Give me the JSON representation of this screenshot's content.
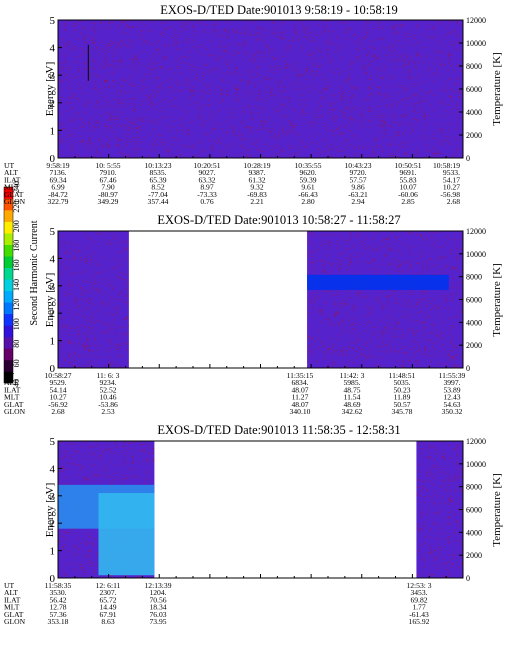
{
  "colors": {
    "background": "#5522cc",
    "noise": "#aa1133",
    "empty": "#ffffff"
  },
  "colorbar": {
    "label": "Second Harmonic Current",
    "ticks": [
      "40",
      "60",
      "80",
      "100",
      "120",
      "140",
      "160",
      "180",
      "200",
      "220",
      "240"
    ]
  },
  "chart_data": [
    {
      "type": "heatmap",
      "title": "EXOS-D/TED   Date:901013   9:58:19 - 10:58:19",
      "ylabel": "Energy [eV]",
      "ylabel_right": "Temperature [K]",
      "ylim": [
        0,
        5
      ],
      "y2lim": [
        0,
        12000
      ],
      "yticks": [
        "0",
        "1",
        "2",
        "3",
        "4",
        "5"
      ],
      "y2ticks": [
        "0",
        "2000",
        "4000",
        "6000",
        "8000",
        "10000",
        "12000"
      ],
      "data_coverage": [
        [
          0,
          1
        ]
      ],
      "features": [
        {
          "kind": "spike",
          "x": 0.075,
          "y0": 2.8,
          "y1": 4.1
        }
      ],
      "rows": {
        "labels": [
          "UT",
          "ALT",
          "ILAT",
          "MLT",
          "GLAT",
          "GLON"
        ],
        "columns": [
          {
            "UT": "9:58:19",
            "ALT": "7136.",
            "ILAT": "69.34",
            "MLT": "6.99",
            "GLAT": "-84.72",
            "GLON": "322.79"
          },
          {
            "UT": "10: 5:55",
            "ALT": "7910.",
            "ILAT": "67.46",
            "MLT": "7.90",
            "GLAT": "-80.97",
            "GLON": "349.29"
          },
          {
            "UT": "10:13:23",
            "ALT": "8535.",
            "ILAT": "65.39",
            "MLT": "8.52",
            "GLAT": "-77.04",
            "GLON": "357.44"
          },
          {
            "UT": "10:20:51",
            "ALT": "9027.",
            "ILAT": "63.32",
            "MLT": "8.97",
            "GLAT": "-73.33",
            "GLON": "0.76"
          },
          {
            "UT": "10:28:19",
            "ALT": "9387.",
            "ILAT": "61.32",
            "MLT": "9.32",
            "GLAT": "-69.83",
            "GLON": "2.21"
          },
          {
            "UT": "10:35:55",
            "ALT": "9620.",
            "ILAT": "59.39",
            "MLT": "9.61",
            "GLAT": "-66.43",
            "GLON": "2.80"
          },
          {
            "UT": "10:43:23",
            "ALT": "9720.",
            "ILAT": "57.57",
            "MLT": "9.86",
            "GLAT": "-63.21",
            "GLON": "2.94"
          },
          {
            "UT": "10:50:51",
            "ALT": "9691.",
            "ILAT": "55.83",
            "MLT": "10.07",
            "GLAT": "-60.06",
            "GLON": "2.85"
          },
          {
            "UT": "10:58:19",
            "ALT": "9533.",
            "ILAT": "54.17",
            "MLT": "10.27",
            "GLAT": "-56.98",
            "GLON": "2.68"
          }
        ]
      }
    },
    {
      "type": "heatmap",
      "title": "EXOS-D/TED   Date:901013   10:58:27 - 11:58:27",
      "ylabel": "Energy [eV]",
      "ylabel_right": "Temperature [K]",
      "ylim": [
        0,
        5
      ],
      "y2lim": [
        0,
        12000
      ],
      "yticks": [
        "0",
        "1",
        "2",
        "3",
        "4",
        "5"
      ],
      "y2ticks": [
        "0",
        "2000",
        "4000",
        "6000",
        "8000",
        "10000",
        "12000"
      ],
      "data_coverage": [
        [
          0,
          0.175
        ],
        [
          0.615,
          1
        ]
      ],
      "features": [
        {
          "kind": "band",
          "x0": 0.615,
          "x1": 0.965,
          "y0": 2.85,
          "y1": 3.4,
          "color": "#0033ee"
        }
      ],
      "rows": {
        "labels": [
          "UT",
          "ALT",
          "ILAT",
          "MLT",
          "GLAT",
          "GLON"
        ],
        "columns": [
          {
            "UT": "10:58:27",
            "ALT": "9529.",
            "ILAT": "54.14",
            "MLT": "10.27",
            "GLAT": "-56.92",
            "GLON": "2.68"
          },
          {
            "UT": "11: 6: 3",
            "ALT": "9234.",
            "ILAT": "52.52",
            "MLT": "10.46",
            "GLAT": "-53.86",
            "GLON": "2.53"
          },
          {
            "UT": "11:35:15",
            "ALT": "6834.",
            "ILAT": "48.07",
            "MLT": "11.27",
            "GLAT": "48.07",
            "GLON": "340.10"
          },
          {
            "UT": "11:42: 3",
            "ALT": "5985.",
            "ILAT": "48.75",
            "MLT": "11.54",
            "GLAT": "48.69",
            "GLON": "342.62"
          },
          {
            "UT": "11:48:51",
            "ALT": "5035.",
            "ILAT": "50.23",
            "MLT": "11.89",
            "GLAT": "50.57",
            "GLON": "345.78"
          },
          {
            "UT": "11:55:39",
            "ALT": "3997.",
            "ILAT": "53.89",
            "MLT": "12.43",
            "GLAT": "54.63",
            "GLON": "350.32"
          }
        ]
      }
    },
    {
      "type": "heatmap",
      "title": "EXOS-D/TED   Date:901013   11:58:35 - 12:58:31",
      "ylabel": "Energy [eV]",
      "ylabel_right": "Temperature [K]",
      "ylim": [
        0,
        5
      ],
      "y2lim": [
        0,
        12000
      ],
      "yticks": [
        "0",
        "1",
        "2",
        "3",
        "4",
        "5"
      ],
      "y2ticks": [
        "0",
        "2000",
        "4000",
        "6000",
        "8000",
        "10000",
        "12000"
      ],
      "data_coverage": [
        [
          0,
          0.238
        ],
        [
          0.885,
          1
        ]
      ],
      "features": [
        {
          "kind": "band",
          "x0": 0.0,
          "x1": 0.238,
          "y0": 1.8,
          "y1": 3.4,
          "color": "#2a8cee"
        },
        {
          "kind": "band",
          "x0": 0.1,
          "x1": 0.238,
          "y0": 0.1,
          "y1": 3.1,
          "color": "#33b8f0"
        }
      ],
      "rows": {
        "labels": [
          "UT",
          "ALT",
          "ILAT",
          "MLT",
          "GLAT",
          "GLON"
        ],
        "columns": [
          {
            "UT": "11:58:35",
            "ALT": "3530.",
            "ILAT": "56.42",
            "MLT": "12.78",
            "GLAT": "57.36",
            "GLON": "353.18"
          },
          {
            "UT": "12: 6:11",
            "ALT": "2307.",
            "ILAT": "65.72",
            "MLT": "14.49",
            "GLAT": "67.91",
            "GLON": "8.63"
          },
          {
            "UT": "12:13:39",
            "ALT": "1204.",
            "ILAT": "70.56",
            "MLT": "18.34",
            "GLAT": "76.03",
            "GLON": "73.95"
          },
          {
            "UT": "12:53: 3",
            "ALT": "3453.",
            "ILAT": "69.82",
            "MLT": "1.77",
            "GLAT": "-61.43",
            "GLON": "165.92"
          }
        ]
      }
    }
  ]
}
